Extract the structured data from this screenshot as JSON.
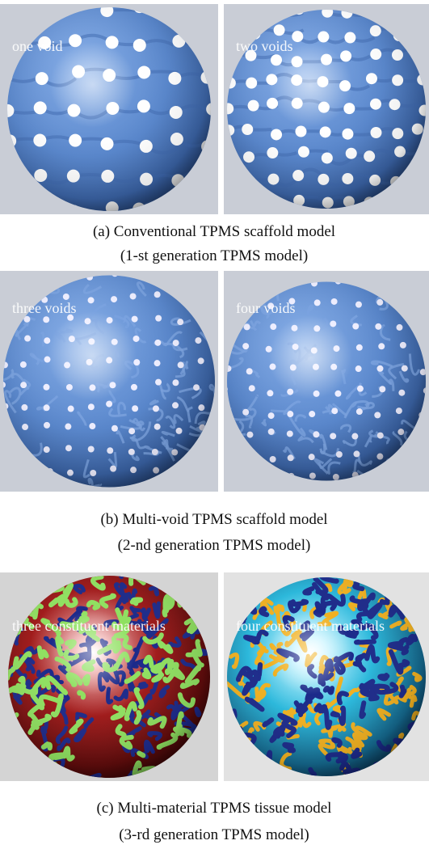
{
  "figure": {
    "rows": [
      {
        "panels": [
          {
            "label": "one void"
          },
          {
            "label": "two voids"
          }
        ],
        "caption": [
          "(a) Conventional TPMS scaffold model",
          "(1-st generation TPMS model)"
        ]
      },
      {
        "panels": [
          {
            "label": "three voids"
          },
          {
            "label": "four voids"
          }
        ],
        "caption": [
          "(b) Multi-void TPMS scaffold model",
          "(2-nd generation TPMS model)"
        ]
      },
      {
        "panels": [
          {
            "label": "three constituent materials"
          },
          {
            "label": "four constituent materials"
          }
        ],
        "caption": [
          "(c) Multi-material TPMS tissue model",
          "(3-rd generation TPMS model)"
        ]
      }
    ]
  }
}
